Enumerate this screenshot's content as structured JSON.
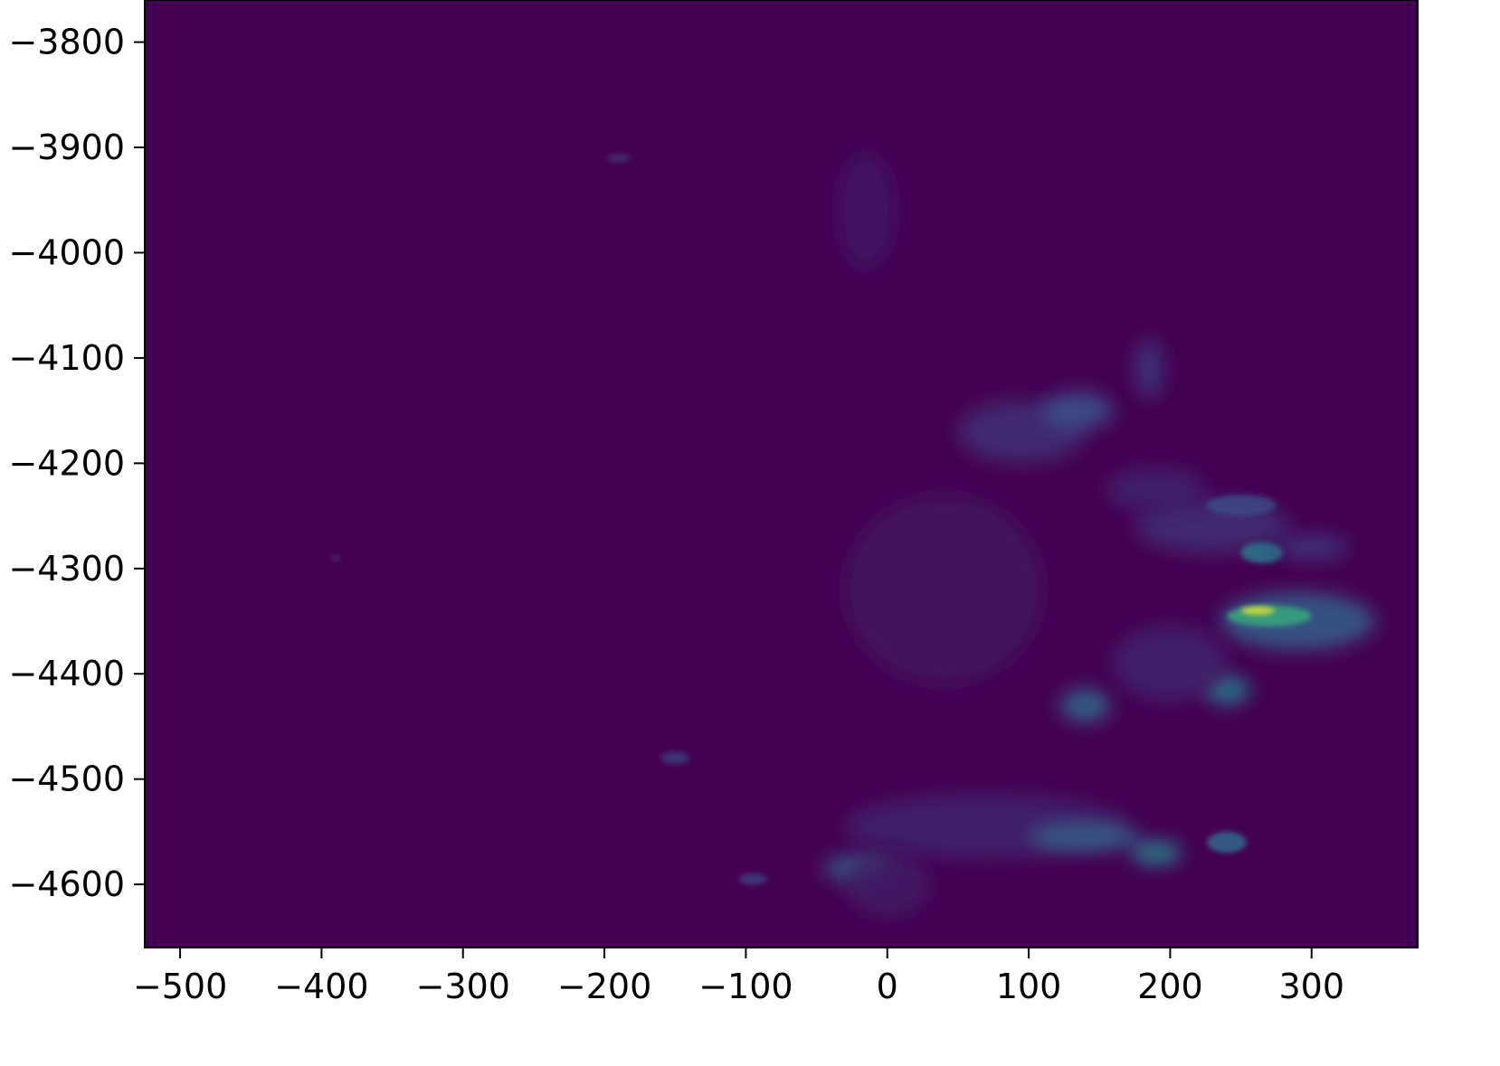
{
  "chart_data": {
    "type": "heatmap",
    "title": "",
    "xlabel": "",
    "ylabel": "",
    "xlim": [
      -525,
      375
    ],
    "ylim": [
      -4660,
      -3760
    ],
    "x_ticks": [
      -500,
      -400,
      -300,
      -200,
      -100,
      0,
      100,
      200,
      300
    ],
    "y_ticks": [
      -3800,
      -3900,
      -4000,
      -4100,
      -4200,
      -4300,
      -4400,
      -4500,
      -4600
    ],
    "x_tick_labels": [
      "−500",
      "−400",
      "−300",
      "−200",
      "−100",
      "0",
      "100",
      "200",
      "300"
    ],
    "y_tick_labels": [
      "−3800",
      "−3900",
      "−4000",
      "−4100",
      "−4200",
      "−4300",
      "−4400",
      "−4500",
      "−4600"
    ],
    "colormap": "viridis",
    "background_color": "#440154",
    "grid": false,
    "features": [
      {
        "x": -15,
        "y": -3960,
        "rx": 20,
        "ry": 55,
        "intensity": 0.07
      },
      {
        "x": 95,
        "y": -4170,
        "rx": 45,
        "ry": 30,
        "intensity": 0.15
      },
      {
        "x": 135,
        "y": -4150,
        "rx": 25,
        "ry": 18,
        "intensity": 0.25
      },
      {
        "x": 185,
        "y": -4110,
        "rx": 10,
        "ry": 28,
        "intensity": 0.18
      },
      {
        "x": 40,
        "y": -4320,
        "rx": 70,
        "ry": 90,
        "intensity": 0.06
      },
      {
        "x": 140,
        "y": -4430,
        "rx": 18,
        "ry": 16,
        "intensity": 0.35
      },
      {
        "x": 230,
        "y": -4260,
        "rx": 55,
        "ry": 25,
        "intensity": 0.15
      },
      {
        "x": 265,
        "y": -4285,
        "rx": 15,
        "ry": 10,
        "intensity": 0.4
      },
      {
        "x": 290,
        "y": -4350,
        "rx": 55,
        "ry": 28,
        "intensity": 0.3
      },
      {
        "x": 270,
        "y": -4345,
        "rx": 30,
        "ry": 10,
        "intensity": 0.6
      },
      {
        "x": 262,
        "y": -4340,
        "rx": 12,
        "ry": 4,
        "intensity": 0.95
      },
      {
        "x": 240,
        "y": -4415,
        "rx": 16,
        "ry": 14,
        "intensity": 0.45
      },
      {
        "x": 200,
        "y": -4390,
        "rx": 40,
        "ry": 35,
        "intensity": 0.12
      },
      {
        "x": 70,
        "y": -4545,
        "rx": 100,
        "ry": 30,
        "intensity": 0.12
      },
      {
        "x": 140,
        "y": -4555,
        "rx": 40,
        "ry": 14,
        "intensity": 0.3
      },
      {
        "x": 190,
        "y": -4570,
        "rx": 18,
        "ry": 12,
        "intensity": 0.45
      },
      {
        "x": 240,
        "y": -4560,
        "rx": 14,
        "ry": 10,
        "intensity": 0.35
      },
      {
        "x": -20,
        "y": -4585,
        "rx": 25,
        "ry": 14,
        "intensity": 0.3
      },
      {
        "x": 0,
        "y": -4600,
        "rx": 30,
        "ry": 30,
        "intensity": 0.08
      },
      {
        "x": -95,
        "y": -4595,
        "rx": 10,
        "ry": 5,
        "intensity": 0.2
      },
      {
        "x": -150,
        "y": -4480,
        "rx": 10,
        "ry": 6,
        "intensity": 0.18
      },
      {
        "x": -190,
        "y": -3910,
        "rx": 8,
        "ry": 4,
        "intensity": 0.15
      },
      {
        "x": -390,
        "y": -4290,
        "rx": 3,
        "ry": 2,
        "intensity": 0.2
      },
      {
        "x": 190,
        "y": -4225,
        "rx": 35,
        "ry": 20,
        "intensity": 0.12
      },
      {
        "x": 250,
        "y": -4240,
        "rx": 25,
        "ry": 10,
        "intensity": 0.22
      },
      {
        "x": 300,
        "y": -4280,
        "rx": 25,
        "ry": 12,
        "intensity": 0.18
      }
    ]
  }
}
